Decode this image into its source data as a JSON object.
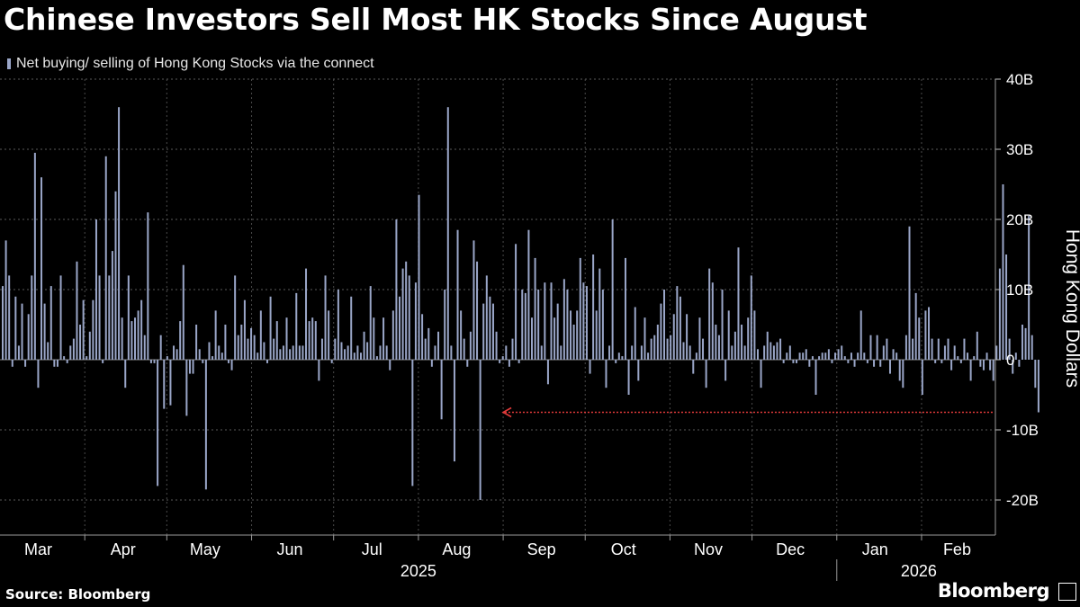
{
  "chart_data": {
    "type": "bar",
    "title": "Chinese Investors Sell Most HK Stocks Since August",
    "legend": "Net buying/ selling of Hong Kong Stocks via the connect",
    "ylabel": "Hong Kong Dollars",
    "unit": "HK$ billions",
    "ylim": [
      -25,
      40
    ],
    "yticks": [
      {
        "value": 40,
        "label": "40B"
      },
      {
        "value": 30,
        "label": "30B"
      },
      {
        "value": 20,
        "label": "20B"
      },
      {
        "value": 10,
        "label": "10B"
      },
      {
        "value": 0,
        "label": "0"
      },
      {
        "value": -10,
        "label": "-10B"
      },
      {
        "value": -20,
        "label": "-20B"
      }
    ],
    "x_start": "2025-03-01",
    "x_end": "2026-02-28",
    "month_ticks": [
      {
        "label": "Mar",
        "date": "2025-03-15"
      },
      {
        "label": "Apr",
        "date": "2025-04-15"
      },
      {
        "label": "May",
        "date": "2025-05-15"
      },
      {
        "label": "Jun",
        "date": "2025-06-15"
      },
      {
        "label": "Jul",
        "date": "2025-07-15"
      },
      {
        "label": "Aug",
        "date": "2025-08-15"
      },
      {
        "label": "Sep",
        "date": "2025-09-15"
      },
      {
        "label": "Oct",
        "date": "2025-10-15"
      },
      {
        "label": "Nov",
        "date": "2025-11-15"
      },
      {
        "label": "Dec",
        "date": "2025-12-15"
      },
      {
        "label": "Jan",
        "date": "2026-01-15"
      },
      {
        "label": "Feb",
        "date": "2026-02-14"
      }
    ],
    "year_labels": [
      {
        "label": "2025",
        "center_date": "2025-08-01"
      },
      {
        "label": "2026",
        "center_date": "2026-01-31"
      }
    ],
    "annotation": {
      "type": "arrow",
      "from_date": "2026-02-27",
      "to_date": "2025-09-01",
      "value": -7.5,
      "color": "#e03a3a"
    },
    "series": [
      {
        "name": "Net buying/ selling of Hong Kong Stocks via the connect",
        "color": "#9aa6c8",
        "start_date": "2025-03-01",
        "step_days": 1.18,
        "values": [
          10.5,
          17,
          12,
          -1,
          9,
          2,
          8,
          -1,
          6.5,
          12,
          29.5,
          -4,
          26,
          8,
          2.5,
          10.5,
          -1,
          -1,
          12,
          0.5,
          -0.5,
          2,
          3,
          14,
          5,
          8.5,
          0.5,
          4,
          8.5,
          20,
          12,
          -0.5,
          29,
          12,
          15.5,
          24,
          36,
          6,
          -4,
          12,
          5.5,
          6,
          7,
          8.5,
          3.5,
          21,
          -0.5,
          -0.5,
          -18,
          3.5,
          -7,
          0.5,
          -6.5,
          2,
          1.5,
          5.5,
          13.5,
          -8,
          -2,
          -2,
          5,
          1.5,
          -0.5,
          -18.5,
          2.5,
          0.5,
          7,
          2,
          1,
          5,
          -0.5,
          -1.5,
          12,
          3.5,
          5,
          8.5,
          3,
          4.5,
          3.5,
          1,
          7,
          2.5,
          -0.5,
          9,
          3,
          5.5,
          1.5,
          2,
          6,
          1.5,
          2,
          9.5,
          2,
          2,
          13,
          5.5,
          6,
          5.5,
          -3,
          3,
          12,
          7,
          -0.5,
          3,
          10,
          2.5,
          1.5,
          2,
          9,
          1,
          2,
          1,
          4,
          2.5,
          10.5,
          6,
          0.5,
          2,
          6,
          2,
          -1.5,
          7,
          20,
          9,
          13,
          14,
          12,
          -18,
          11,
          23.5,
          6.5,
          3,
          4.5,
          -1,
          2,
          4,
          -8.5,
          10,
          36,
          2,
          -14.5,
          18.5,
          7,
          3,
          -1,
          4,
          17,
          14,
          -20,
          8,
          12,
          9,
          8,
          4,
          -0.5,
          0.5,
          2,
          -1,
          3,
          16.5,
          -0.5,
          10,
          9.5,
          18.5,
          6,
          14.5,
          10,
          2,
          11,
          -3.5,
          11,
          6,
          8,
          2,
          11.5,
          10,
          7,
          5,
          7,
          14.5,
          11,
          10.5,
          -2,
          15,
          7,
          13,
          10,
          -4,
          2,
          20,
          -0.5,
          1,
          0.5,
          14.5,
          -5,
          2,
          7.5,
          -3,
          2,
          6,
          1,
          3,
          3.5,
          5,
          8,
          10,
          3,
          3.5,
          6.5,
          10.5,
          9,
          2.5,
          6.5,
          2,
          -2,
          1,
          6,
          3,
          -4,
          13,
          11,
          5,
          3.5,
          10,
          -3,
          7,
          2,
          4,
          16,
          5,
          2,
          6,
          12,
          7,
          1.5,
          -4,
          2,
          4,
          2.5,
          2,
          2.5,
          3,
          -0.5,
          1,
          2,
          -0.5,
          -0.5,
          1,
          1,
          1.5,
          -1,
          0.5,
          -5,
          0.5,
          1,
          1,
          1.5,
          -0.5,
          1,
          1.5,
          2,
          0.5,
          -0.5,
          1,
          -1,
          1,
          7,
          1,
          -0.5,
          3.5,
          -1,
          3.5,
          -1,
          2,
          3,
          -2,
          1.5,
          1,
          -3,
          -4,
          3.5,
          19,
          3,
          9.5,
          6,
          -5,
          7,
          7.5,
          3,
          -0.5,
          3,
          -0.5,
          2,
          3,
          -1.5,
          2,
          0.5,
          -0.5,
          3,
          1,
          -3,
          0.5,
          4,
          -1,
          -1.5,
          1,
          -1.5,
          -3,
          2,
          13,
          25,
          15,
          3,
          -2,
          1,
          -1,
          5,
          4.5,
          20.5,
          3.5,
          -4,
          -7.5
        ]
      }
    ]
  },
  "source": "Source: Bloomberg",
  "brand": "Bloomberg"
}
